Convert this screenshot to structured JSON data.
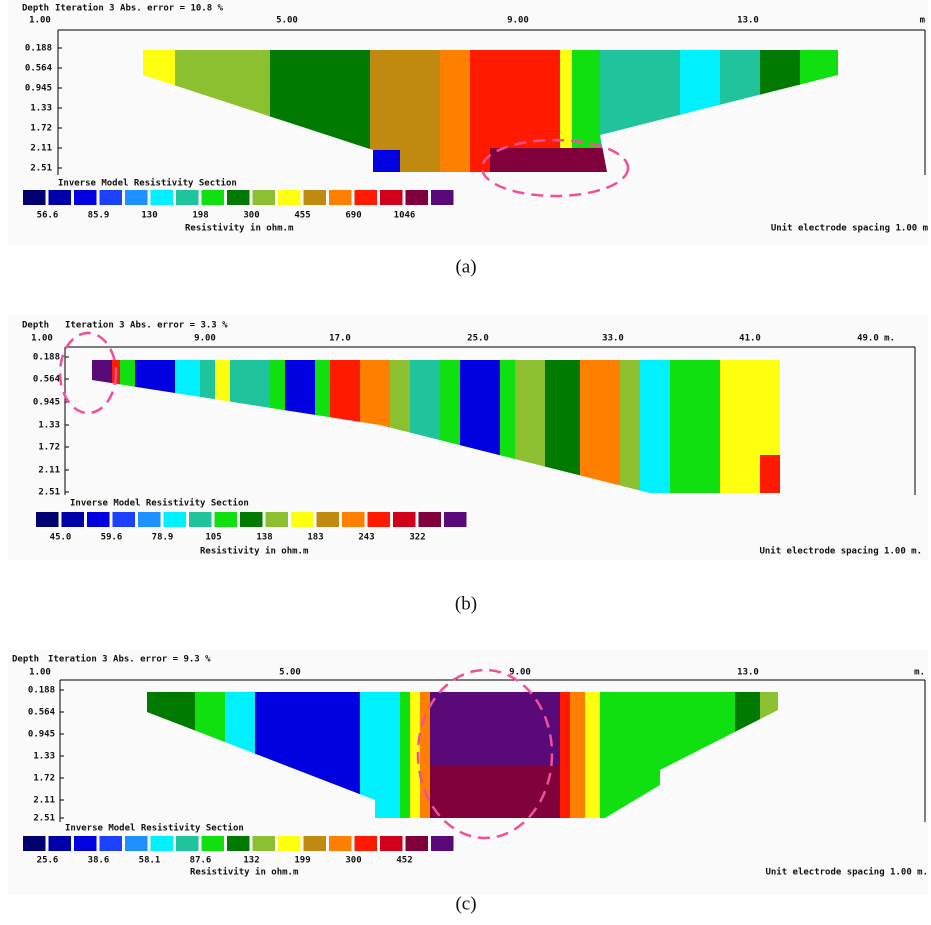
{
  "panels": [
    {
      "depth_label": "Depth",
      "header": "Iteration 3 Abs. error = 10.8 %",
      "x_labels": [
        "1.00",
        "5.00",
        "9.00",
        "13.0",
        "m"
      ],
      "depth_ticks": [
        "0.188",
        "0.564",
        "0.945",
        "1.33",
        "1.72",
        "2.11",
        "2.51"
      ],
      "legend_title": "Inverse Model Resistivity Section",
      "legend_values": [
        "56.6",
        "85.9",
        "130",
        "198",
        "300",
        "455",
        "690",
        "1046"
      ],
      "legend_unit": "Resistivity in ohm.m",
      "spacing": "Unit electrode spacing 1.00 m",
      "caption": "(a)"
    },
    {
      "depth_label": "Depth",
      "header": "Iteration 3 Abs. error = 3.3 %",
      "x_labels": [
        "1.00",
        "9.00",
        "17.0",
        "25.0",
        "33.0",
        "41.0",
        "49.0 m."
      ],
      "depth_ticks": [
        "0.188",
        "0.564",
        "0.945",
        "1.33",
        "1.72",
        "2.11",
        "2.51"
      ],
      "legend_title": "Inverse Model Resistivity Section",
      "legend_values": [
        "45.0",
        "59.6",
        "78.9",
        "105",
        "138",
        "183",
        "243",
        "322"
      ],
      "legend_unit": "Resistivity in ohm.m",
      "spacing": "Unit electrode spacing 1.00 m.",
      "caption": "(b)"
    },
    {
      "depth_label": "Depth",
      "header": "Iteration 3 Abs. error = 9.3 %",
      "x_labels": [
        "1.00",
        "5.00",
        "9.00",
        "13.0",
        "m."
      ],
      "depth_ticks": [
        "0.188",
        "0.564",
        "0.945",
        "1.33",
        "1.72",
        "2.11",
        "2.51"
      ],
      "legend_title": "Inverse Model Resistivity Section",
      "legend_values": [
        "25.6",
        "38.6",
        "58.1",
        "87.6",
        "132",
        "199",
        "300",
        "452"
      ],
      "legend_unit": "Resistivity in ohm.m",
      "spacing": "Unit electrode spacing 1.00 m.",
      "caption": "(c)"
    }
  ]
}
